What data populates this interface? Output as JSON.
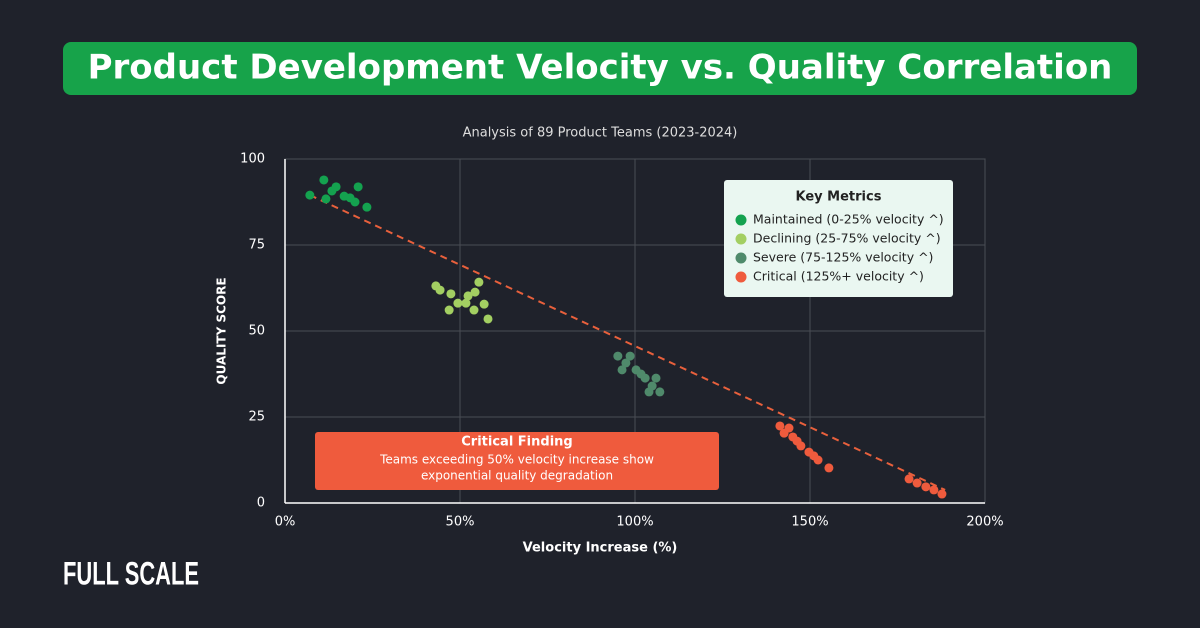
{
  "brand": "FULL SCALE",
  "chart_data": {
    "type": "scatter",
    "title": "Product Development Velocity vs. Quality Correlation",
    "subtitle": "Analysis of 89 Product Teams (2023-2024)",
    "x_label": "Velocity Increase (%)",
    "y_label": "QUALITY SCORE",
    "xlim": [
      0,
      200
    ],
    "ylim": [
      0,
      100
    ],
    "xticks": [
      {
        "value": 0,
        "label": "0%"
      },
      {
        "value": 50,
        "label": "50%"
      },
      {
        "value": 100,
        "label": "100%"
      },
      {
        "value": 150,
        "label": "150%"
      },
      {
        "value": 200,
        "label": "200%"
      }
    ],
    "yticks": [
      0,
      25,
      50,
      75,
      100
    ],
    "grid": true,
    "legend": "upper right",
    "legend_title": "Key Metrics",
    "series": [
      {
        "name": "Maintained (0-25% velocity ^)",
        "color": "#14a24f",
        "x": [
          7.1,
          11.1,
          11.7,
          13.4,
          14.6,
          16.9,
          18.6,
          20,
          20.9,
          23.4
        ],
        "values": [
          89.5,
          93.9,
          88.4,
          90.7,
          91.9,
          89.2,
          88.7,
          87.5,
          91.9,
          86
        ]
      },
      {
        "name": "Declining (25-75% velocity ^)",
        "color": "#a3cf62",
        "x": [
          43.1,
          44.3,
          47.4,
          46.9,
          49.4,
          51.7,
          52.3,
          54.3,
          55.4,
          54,
          56.9,
          58
        ],
        "values": [
          63.1,
          61.9,
          60.8,
          56.1,
          58.1,
          58.1,
          60.2,
          61.3,
          64.2,
          56.1,
          57.8,
          53.5
        ]
      },
      {
        "name": "Severe (75-125% velocity ^)",
        "color": "#4f8a6b",
        "x": [
          95.1,
          98.6,
          97.4,
          96.3,
          100.3,
          101.7,
          102.9,
          106,
          104.9,
          104,
          107.1
        ],
        "values": [
          42.7,
          42.7,
          40.7,
          38.7,
          38.7,
          37.5,
          36.3,
          36.3,
          34,
          32.3,
          32.3
        ]
      },
      {
        "name": "Critical (125%+ velocity ^)",
        "color": "#ef5b3d",
        "x": [
          141.4,
          142.6,
          144,
          145.1,
          146.3,
          147.4,
          149.7,
          151.1,
          152.3,
          155.4,
          178.3,
          180.6,
          183.1,
          185.4,
          187.7
        ],
        "values": [
          22.4,
          20.3,
          21.8,
          19.2,
          18,
          16.6,
          14.8,
          13.7,
          12.5,
          10.2,
          7,
          5.8,
          4.7,
          3.8,
          2.6
        ]
      }
    ],
    "trendline": {
      "x": [
        7.1,
        188.6
      ],
      "values": [
        89.5,
        3.8
      ],
      "color": "#e8603c"
    },
    "annotations": [
      {
        "title": "Critical Finding",
        "lines": [
          "Teams exceeding 50% velocity increase show",
          "exponential quality degradation"
        ],
        "color": "#ef5b3d"
      }
    ]
  }
}
